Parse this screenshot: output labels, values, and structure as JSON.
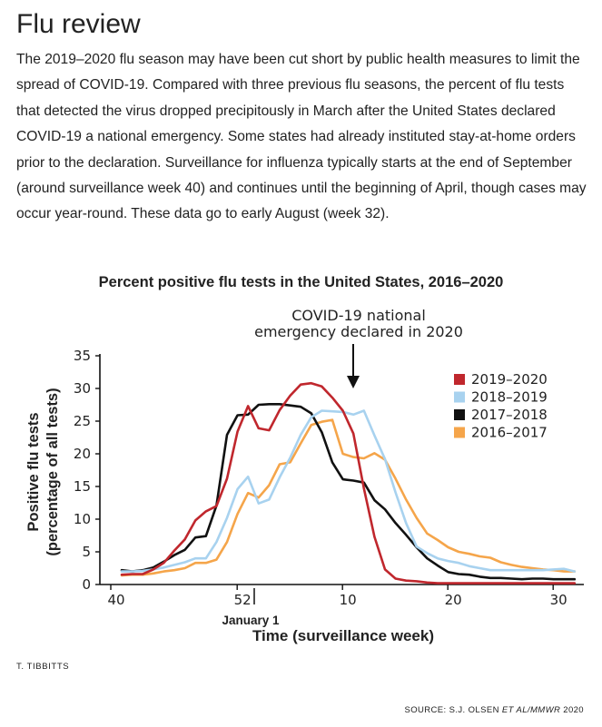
{
  "article": {
    "heading": "Flu review",
    "intro": "The 2019–2020 flu season may have been cut short by public health measures to limit the spread of COVID-19. Compared with three previous flu seasons, the percent of flu tests that detected the virus dropped precipitously in March after the United States declared COVID-19 a national emergency. Some states had already instituted stay-at-home orders prior to the declaration. Surveillance for influenza typically starts at the end of September (around surveillance week 40) and continues until the beginning of April, though cases may occur year-round. These data go to early August (week 32).",
    "credit": "T. TIBBITTS",
    "source_prefix": "SOURCE: S.J. OLSEN ",
    "source_italic": "ET AL/MMWR",
    "source_suffix": " 2020"
  },
  "chart_data": {
    "type": "line",
    "title": "Percent positive flu tests in the United States, 2016–2020",
    "xlabel": "Time (surveillance week)",
    "ylabel_line1": "Positive flu tests",
    "ylabel_line2": "(percentage of all tests)",
    "x_ticks": [
      "40",
      "52",
      "10",
      "20",
      "30"
    ],
    "y_ticks": [
      "0",
      "5",
      "10",
      "15",
      "20",
      "25",
      "30",
      "35"
    ],
    "ylim": [
      0,
      35
    ],
    "grid": false,
    "legend_position": "top-right",
    "annotations": {
      "covid_line1": "COVID-19 national",
      "covid_line2": "emergency declared in 2020",
      "january": "January 1"
    },
    "series": [
      {
        "name": "2016–2017",
        "color": "#f5a54a",
        "values": [
          1.4,
          1.5,
          1.5,
          1.7,
          2,
          2.2,
          2.5,
          3.3,
          3.3,
          3.8,
          6.5,
          10.8,
          14,
          13.3,
          15.2,
          18.4,
          18.7,
          21.6,
          24.4,
          24.9,
          25.2,
          20,
          19.5,
          19.3,
          20.1,
          19.1,
          16.2,
          13,
          10.2,
          7.8,
          6.8,
          5.7,
          5,
          4.7,
          4.3,
          4.1,
          3.4,
          3,
          2.7,
          2.5,
          2.3,
          2.2,
          2,
          2
        ]
      },
      {
        "name": "2017–2018",
        "color": "#111111",
        "values": [
          2.2,
          2,
          2.2,
          2.6,
          3.5,
          4.5,
          5.3,
          7.2,
          7.4,
          12.1,
          22.9,
          25.9,
          26,
          27.5,
          27.6,
          27.6,
          27.4,
          27.2,
          26.2,
          23.3,
          18.7,
          16.1,
          15.9,
          15.6,
          12.9,
          11.5,
          9.4,
          7.6,
          5.7,
          4,
          2.9,
          1.9,
          1.6,
          1.5,
          1.2,
          1,
          1,
          0.9,
          0.8,
          0.9,
          0.9,
          0.8,
          0.8,
          0.8
        ]
      },
      {
        "name": "2018–2019",
        "color": "#a8d2ef",
        "values": [
          2,
          2,
          2.1,
          2.3,
          2.6,
          3,
          3.4,
          4,
          4,
          6.5,
          10.2,
          14.6,
          16.5,
          12.4,
          13,
          16.4,
          19.4,
          22.9,
          25.6,
          26.6,
          26.5,
          26.4,
          26,
          26.6,
          22.8,
          19.2,
          14.1,
          9.4,
          5.8,
          4.8,
          4,
          3.6,
          3.3,
          2.8,
          2.5,
          2.2,
          2.2,
          2.2,
          2.2,
          2.2,
          2.2,
          2.3,
          2.4,
          2
        ]
      },
      {
        "name": "2019–2020",
        "color": "#c0272d",
        "values": [
          1.5,
          1.6,
          1.6,
          2.3,
          3.3,
          5.2,
          6.9,
          9.8,
          11.2,
          12,
          16.2,
          23.4,
          27.3,
          23.9,
          23.6,
          26.7,
          28.9,
          30.6,
          30.8,
          30.3,
          28.6,
          26.6,
          23.1,
          14.7,
          7.3,
          2.3,
          0.9,
          0.6,
          0.5,
          0.3,
          0.2,
          0.2,
          0.2,
          0.2,
          0.2,
          0.2,
          0.2,
          0.2,
          0.2,
          0.2,
          0.2,
          0.2,
          0.2,
          0.2
        ]
      }
    ]
  }
}
